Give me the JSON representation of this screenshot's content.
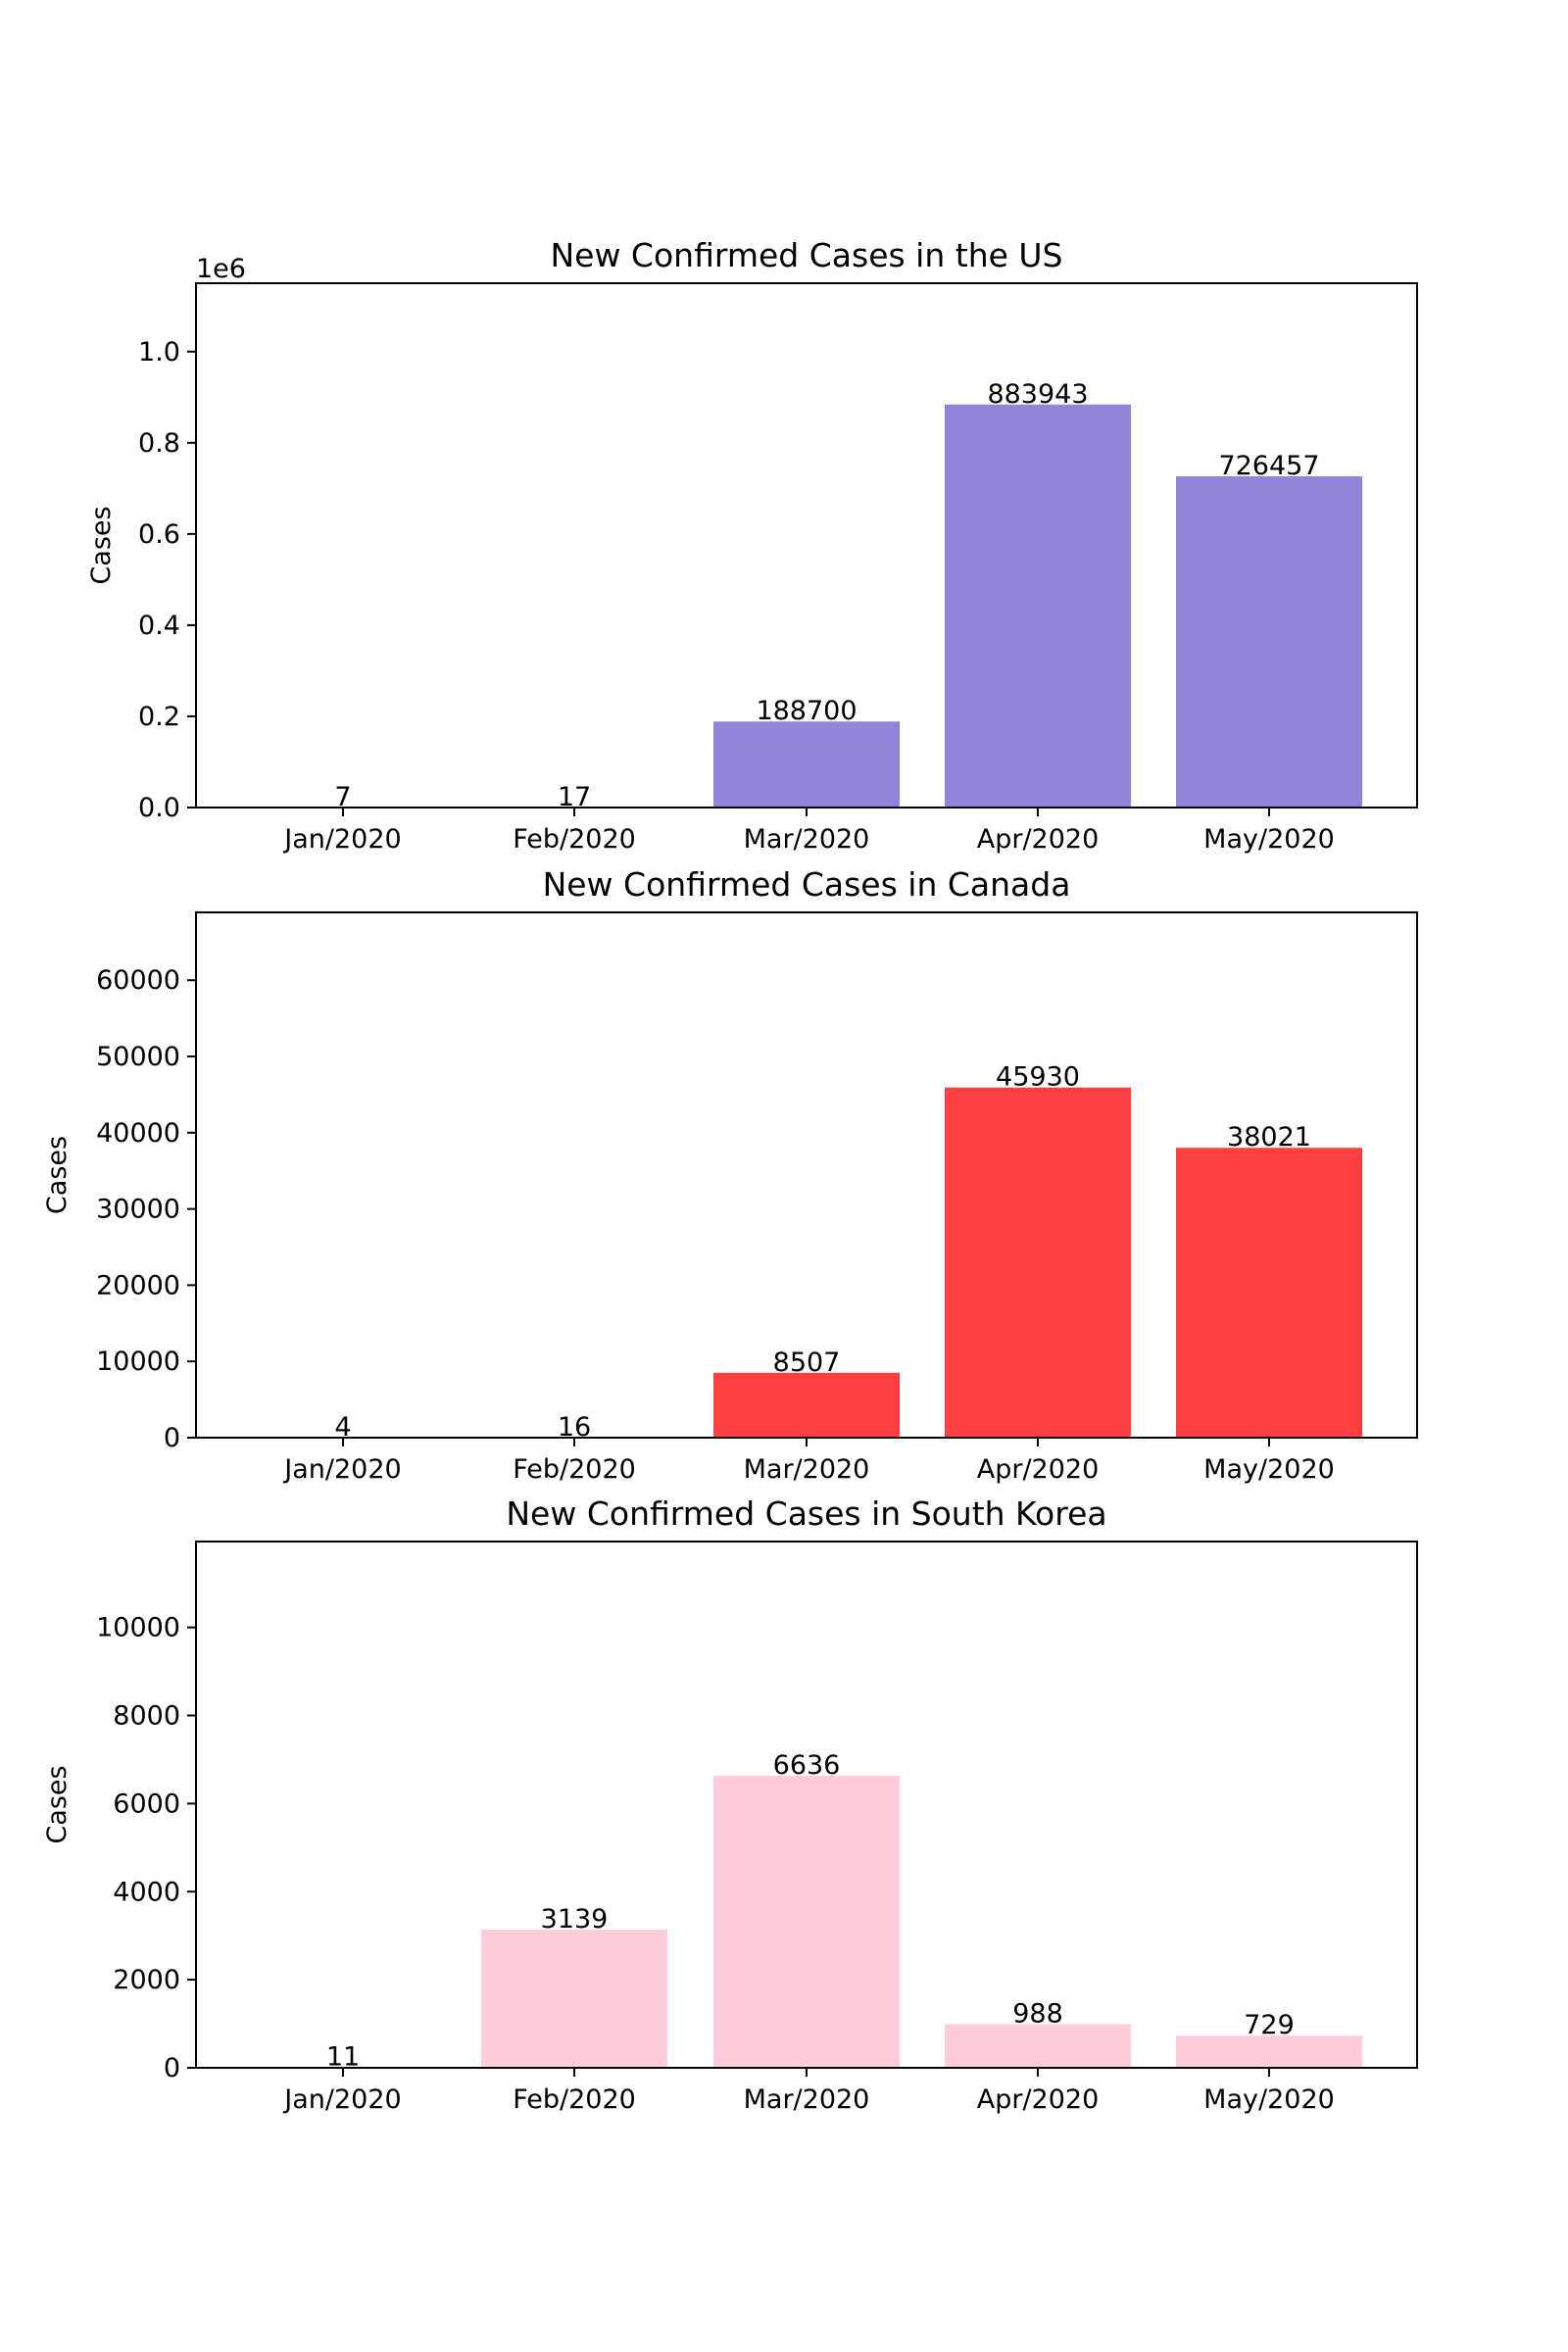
{
  "chart_data": [
    {
      "type": "bar",
      "title": "New Confirmed Cases in the US",
      "xlabel": "",
      "ylabel": "Cases",
      "categories": [
        "Jan/2020",
        "Feb/2020",
        "Mar/2020",
        "Apr/2020",
        "May/2020"
      ],
      "values": [
        7,
        17,
        188700,
        883943,
        726457
      ],
      "ylim": [
        0,
        1150000
      ],
      "yticks": [
        0,
        200000,
        400000,
        600000,
        800000,
        1000000
      ],
      "ytick_labels": [
        "0.0",
        "0.2",
        "0.4",
        "0.6",
        "0.8",
        "1.0"
      ],
      "offset_label": "1e6",
      "color": "#9085d9",
      "grid": false
    },
    {
      "type": "bar",
      "title": "New Confirmed Cases in Canada",
      "xlabel": "",
      "ylabel": "Cases",
      "categories": [
        "Jan/2020",
        "Feb/2020",
        "Mar/2020",
        "Apr/2020",
        "May/2020"
      ],
      "values": [
        4,
        16,
        8507,
        45930,
        38021
      ],
      "ylim": [
        0,
        68900
      ],
      "yticks": [
        0,
        10000,
        20000,
        30000,
        40000,
        50000,
        60000
      ],
      "ytick_labels": [
        "0",
        "10000",
        "20000",
        "30000",
        "40000",
        "50000",
        "60000"
      ],
      "color": "#ff4040",
      "grid": false
    },
    {
      "type": "bar",
      "title": "New Confirmed Cases in South Korea",
      "xlabel": "",
      "ylabel": "Cases",
      "categories": [
        "Jan/2020",
        "Feb/2020",
        "Mar/2020",
        "Apr/2020",
        "May/2020"
      ],
      "values": [
        11,
        3139,
        6636,
        988,
        729
      ],
      "ylim": [
        0,
        11950
      ],
      "yticks": [
        0,
        2000,
        4000,
        6000,
        8000,
        10000
      ],
      "ytick_labels": [
        "0",
        "2000",
        "4000",
        "6000",
        "8000",
        "10000"
      ],
      "color": "#ffced8",
      "grid": false
    }
  ]
}
